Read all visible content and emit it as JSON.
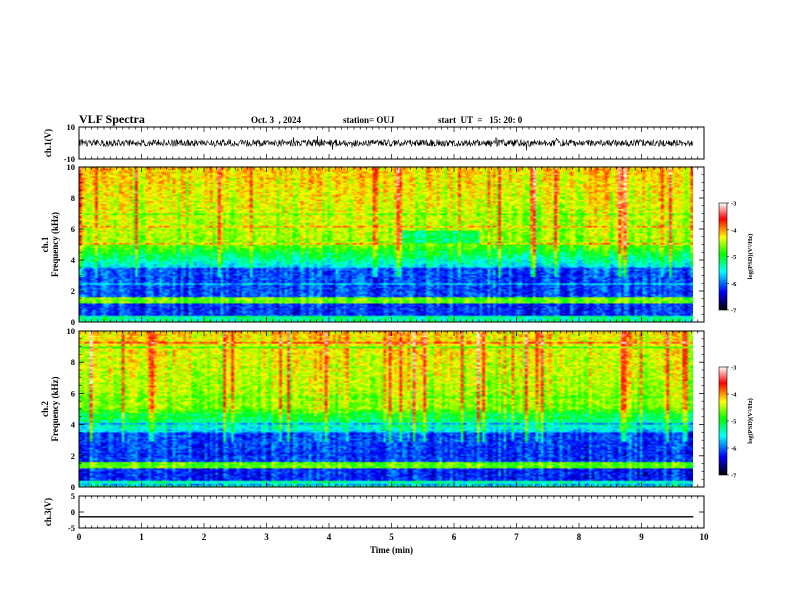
{
  "header": {
    "title": "VLF Spectra",
    "date": "Oct. 3  , 2024",
    "station": "station= OUJ",
    "start_time": "start  UT  =   15: 20: 0"
  },
  "chart_data": [
    {
      "type": "line",
      "panel": "ch1-waveform",
      "ylabel": "ch.1(V)",
      "ylim": [
        -10,
        10
      ],
      "ytick_labels": [
        "10",
        "-10"
      ],
      "xlim": [
        0,
        10
      ],
      "series": [
        {
          "x": [
            0,
            9.83
          ],
          "y": [
            0,
            0
          ]
        }
      ]
    },
    {
      "type": "heatmap",
      "panel": "ch1-spectrogram",
      "ylabel_lines": [
        "ch.1",
        "Frequency (kHz)"
      ],
      "ylim": [
        0,
        10
      ],
      "ytick_labels": [
        "0",
        "2",
        "4",
        "6",
        "8",
        "10"
      ],
      "xlim": [
        0,
        10
      ],
      "data_extent_x": [
        0,
        9.83
      ],
      "colorbar": {
        "label": "log(PSD)(V²/Hz)",
        "range": [
          -7,
          -3
        ],
        "tick_labels": [
          "-3",
          "-4",
          "-5",
          "-6",
          "-7"
        ]
      }
    },
    {
      "type": "heatmap",
      "panel": "ch2-spectrogram",
      "ylabel_lines": [
        "ch.2",
        "Frequency (kHz)"
      ],
      "ylim": [
        0,
        10
      ],
      "ytick_labels": [
        "0",
        "2",
        "4",
        "6",
        "8",
        "10"
      ],
      "xlim": [
        0,
        10
      ],
      "data_extent_x": [
        0,
        9.83
      ],
      "colorbar": {
        "label": "log(PSD)(V²/Hz)",
        "range": [
          -7,
          -3
        ],
        "tick_labels": [
          "-3",
          "-4",
          "-5",
          "-6",
          "-7"
        ]
      }
    },
    {
      "type": "line",
      "panel": "ch3-waveform",
      "ylabel": "ch.3(V)",
      "ylim": [
        -5,
        5
      ],
      "ytick_labels": [
        "5",
        "0",
        "-5"
      ],
      "xlim": [
        0,
        10
      ],
      "xlabel": "Time  (min)",
      "xtick_labels": [
        "0",
        "1",
        "2",
        "3",
        "4",
        "5",
        "6",
        "7",
        "8",
        "9",
        "10"
      ],
      "series": [
        {
          "x": [
            0,
            9.83
          ],
          "y": [
            -1.5,
            -1.5
          ]
        }
      ]
    }
  ],
  "colors": {
    "colormap": [
      "#000000",
      "#0000ff",
      "#00ffff",
      "#00ff00",
      "#ffff00",
      "#ff0000",
      "#ffffff"
    ]
  }
}
